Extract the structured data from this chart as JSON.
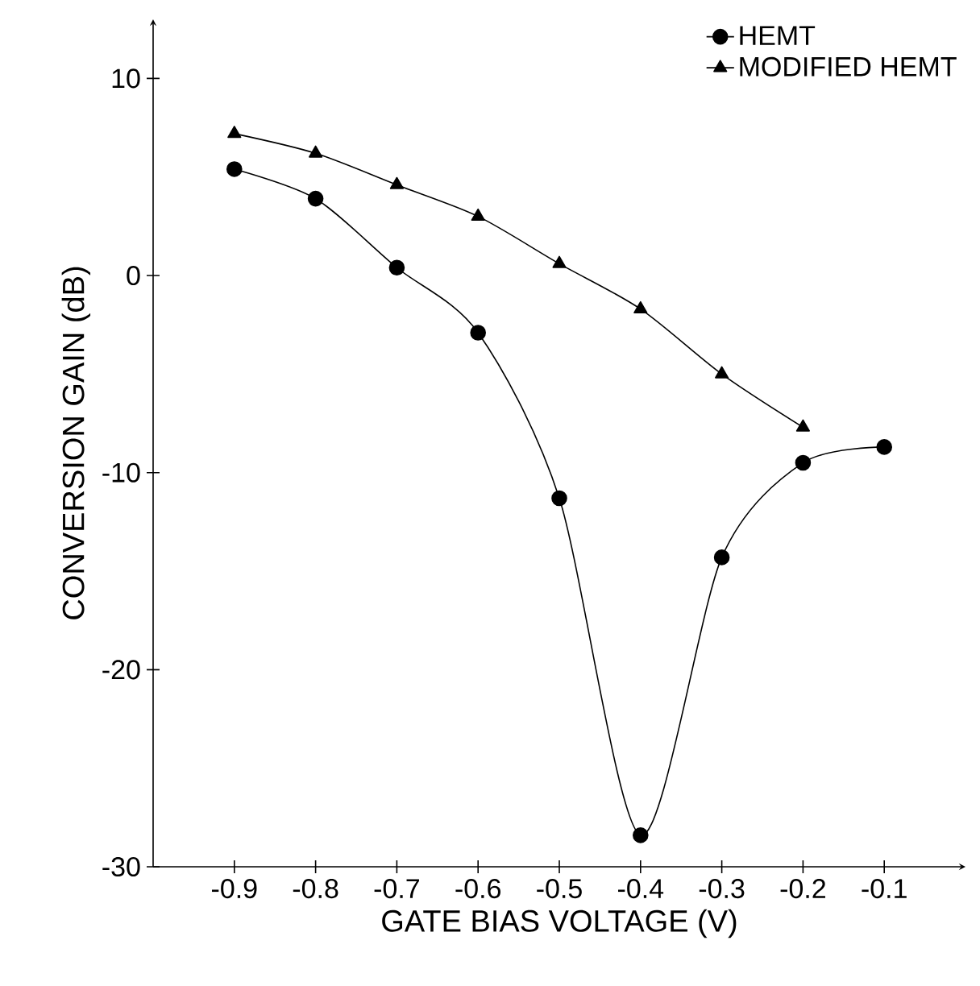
{
  "chart_data": {
    "type": "line",
    "xlabel": "GATE BIAS VOLTAGE (V)",
    "ylabel": "CONVERSION GAIN (dB)",
    "xlim": [
      -1.0,
      0.0
    ],
    "ylim": [
      -30,
      13
    ],
    "xticks": [
      -0.9,
      -0.8,
      -0.7,
      -0.6,
      -0.5,
      -0.4,
      -0.3,
      -0.2,
      -0.1
    ],
    "yticks": [
      -30,
      -20,
      -10,
      0,
      10
    ],
    "grid": false,
    "legend": "top right",
    "line_style": "solid",
    "series": [
      {
        "name": "HEMT",
        "color": "#000000",
        "marker": "circle",
        "x": [
          -0.9,
          -0.8,
          -0.7,
          -0.6,
          -0.5,
          -0.4,
          -0.3,
          -0.2,
          -0.1
        ],
        "values": [
          5.4,
          3.9,
          0.4,
          -2.9,
          -11.3,
          -28.4,
          -14.3,
          -9.5,
          -8.7
        ]
      },
      {
        "name": "MODIFIED HEMT",
        "color": "#000000",
        "marker": "triangle",
        "x": [
          -0.9,
          -0.8,
          -0.7,
          -0.6,
          -0.5,
          -0.4,
          -0.3,
          -0.2
        ],
        "values": [
          7.2,
          6.2,
          4.6,
          3.0,
          0.6,
          -1.7,
          -5.0,
          -7.7
        ]
      }
    ]
  }
}
